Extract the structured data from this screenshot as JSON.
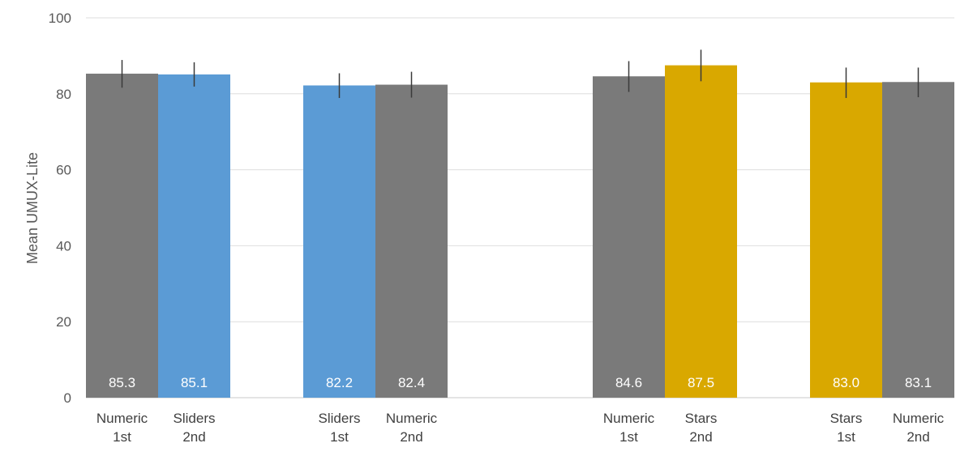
{
  "chart_data": {
    "type": "bar",
    "ylabel": "Mean UMUX-Lite",
    "xlabel": "",
    "ylim": [
      0,
      100
    ],
    "yticks": [
      0,
      20,
      40,
      60,
      80,
      100
    ],
    "grid": true,
    "data_labels": true,
    "groups": [
      {
        "bars": [
          {
            "label": [
              "Numeric",
              "1st"
            ],
            "value": 85.3,
            "value_label": "85.3",
            "err_low": 81.6,
            "err_high": 88.9,
            "color": "#7a7a7a"
          },
          {
            "label": [
              "Sliders",
              "2nd"
            ],
            "value": 85.1,
            "value_label": "85.1",
            "err_low": 81.9,
            "err_high": 88.3,
            "color": "#5b9bd5"
          }
        ]
      },
      {
        "bars": [
          {
            "label": [
              "Sliders",
              "1st"
            ],
            "value": 82.2,
            "value_label": "82.2",
            "err_low": 78.9,
            "err_high": 85.4,
            "color": "#5b9bd5"
          },
          {
            "label": [
              "Numeric",
              "2nd"
            ],
            "value": 82.4,
            "value_label": "82.4",
            "err_low": 79.0,
            "err_high": 85.8,
            "color": "#7a7a7a"
          }
        ]
      },
      {
        "bars": [
          {
            "label": [
              "Numeric",
              "1st"
            ],
            "value": 84.6,
            "value_label": "84.6",
            "err_low": 80.5,
            "err_high": 88.6,
            "color": "#7a7a7a"
          },
          {
            "label": [
              "Stars",
              "2nd"
            ],
            "value": 87.5,
            "value_label": "87.5",
            "err_low": 83.3,
            "err_high": 91.6,
            "color": "#d9a800"
          }
        ]
      },
      {
        "bars": [
          {
            "label": [
              "Stars",
              "1st"
            ],
            "value": 83.0,
            "value_label": "83.0",
            "err_low": 78.9,
            "err_high": 86.9,
            "color": "#d9a800"
          },
          {
            "label": [
              "Numeric",
              "2nd"
            ],
            "value": 83.1,
            "value_label": "83.1",
            "err_low": 79.1,
            "err_high": 86.9,
            "color": "#7a7a7a"
          }
        ]
      }
    ]
  }
}
